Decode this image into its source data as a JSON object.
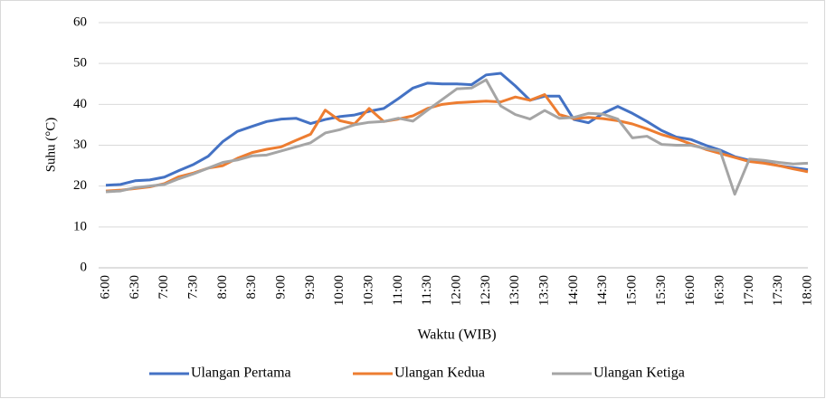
{
  "chart_data": {
    "type": "line",
    "x_label": "Waktu (WIB)",
    "y_label": "Suhu (°C)",
    "categories": [
      "6:00",
      null,
      "6:30",
      null,
      "7:00",
      null,
      "7:30",
      null,
      "8:00",
      null,
      "8:30",
      null,
      "9:00",
      null,
      "9:30",
      null,
      "10:00",
      null,
      "10:30",
      null,
      "11:00",
      null,
      "11:30",
      null,
      "12:00",
      null,
      "12:30",
      null,
      "13:00",
      null,
      "13:30",
      null,
      "14:00",
      null,
      "14:30",
      null,
      "15:00",
      null,
      "15:30",
      null,
      "16:00",
      null,
      "16:30",
      null,
      "17:00",
      null,
      "17:30",
      null,
      "18:00"
    ],
    "ylim": [
      0,
      60
    ],
    "yticks": [
      0,
      10,
      20,
      30,
      40,
      50,
      60
    ],
    "grid": true,
    "legend": "bottom",
    "series": [
      {
        "name": "Ulangan Pertama",
        "color": "#4472c4",
        "values": [
          20.2,
          20.4,
          21.3,
          21.5,
          22.2,
          23.8,
          25.3,
          27.3,
          30.9,
          33.4,
          34.6,
          35.8,
          36.4,
          36.6,
          35.3,
          36.3,
          37.0,
          37.4,
          38.3,
          39.0,
          41.4,
          44.0,
          45.2,
          45.0,
          45.0,
          44.8,
          47.2,
          47.6,
          44.5,
          41.0,
          42.0,
          42.0,
          36.3,
          35.5,
          37.8,
          39.5,
          37.8,
          35.8,
          33.6,
          32.0,
          31.4,
          30.0,
          28.8,
          27.2,
          26.3,
          25.8,
          25.0,
          24.5,
          24.0
        ]
      },
      {
        "name": "Ulangan Kedua",
        "color": "#ed7d31",
        "values": [
          18.8,
          19.0,
          19.4,
          19.8,
          20.6,
          22.3,
          23.2,
          24.4,
          25.0,
          26.8,
          28.2,
          29.0,
          29.6,
          31.2,
          32.7,
          38.6,
          36.0,
          35.2,
          39.0,
          35.8,
          36.4,
          37.2,
          39.0,
          40.0,
          40.4,
          40.6,
          40.8,
          40.6,
          41.8,
          41.0,
          42.4,
          37.5,
          36.5,
          36.8,
          36.5,
          36.0,
          35.2,
          34.0,
          32.6,
          31.6,
          30.3,
          29.0,
          28.0,
          27.0,
          26.0,
          25.6,
          25.0,
          24.2,
          23.5
        ]
      },
      {
        "name": "Ulangan Ketiga",
        "color": "#a5a5a5",
        "values": [
          18.6,
          18.8,
          19.6,
          20.0,
          20.4,
          21.8,
          23.0,
          24.4,
          25.8,
          26.4,
          27.4,
          27.6,
          28.6,
          29.6,
          30.6,
          33.0,
          33.8,
          35.0,
          35.6,
          35.8,
          36.6,
          35.9,
          38.6,
          41.2,
          43.8,
          44.0,
          46.0,
          39.6,
          37.5,
          36.4,
          38.5,
          36.6,
          36.8,
          37.8,
          37.6,
          36.4,
          31.8,
          32.2,
          30.2,
          30.0,
          30.0,
          29.2,
          28.6,
          18.0,
          26.6,
          26.3,
          25.8,
          25.4,
          25.6
        ]
      }
    ]
  }
}
